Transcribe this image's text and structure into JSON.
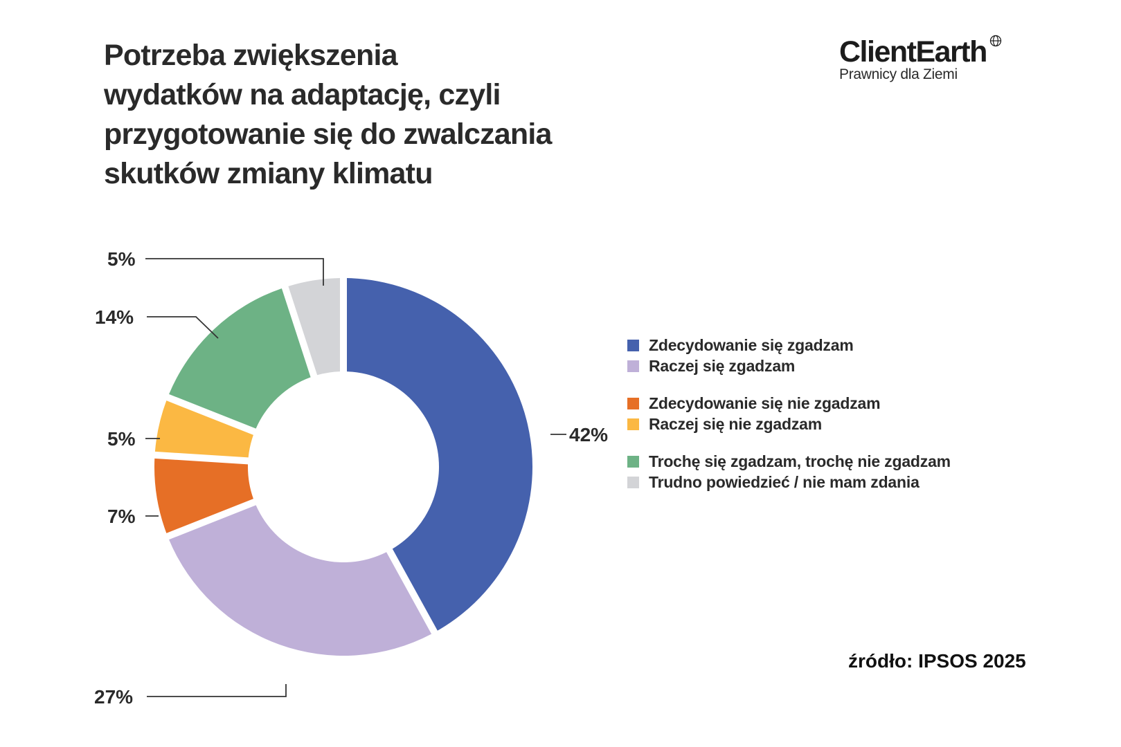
{
  "header": {
    "title": "Potrzeba zwiększenia wydatków na adaptację, czyli przygotowanie się do zwalczania skutków zmiany klimatu",
    "title_lines": [
      "Potrzeba zwiększenia",
      "wydatków na adaptację, czyli",
      "przygotowanie się do zwalczania",
      "skutków zmiany klimatu"
    ]
  },
  "logo": {
    "name": "ClientEarth",
    "tagline": "Prawnicy dla Ziemi",
    "icon": "globe-icon"
  },
  "source": "źródło: IPSOS 2025",
  "legend": {
    "groups": [
      [
        {
          "label": "Zdecydowanie się zgadzam",
          "color": "#4561AD"
        },
        {
          "label": "Raczej się zgadzam",
          "color": "#BFB0D8"
        }
      ],
      [
        {
          "label": "Zdecydowanie się nie zgadzam",
          "color": "#E66F26"
        },
        {
          "label": "Raczej się nie zgadzam",
          "color": "#FBB843"
        }
      ],
      [
        {
          "label": "Trochę się zgadzam, trochę nie zgadzam",
          "color": "#6DB285"
        },
        {
          "label": "Trudno powiedzieć / nie mam zdania",
          "color": "#D3D4D7"
        }
      ]
    ]
  },
  "chart_data": {
    "type": "pie",
    "variant": "donut",
    "title": "Potrzeba zwiększenia wydatków na adaptację, czyli przygotowanie się do zwalczania skutków zmiany klimatu",
    "categories": [
      "Zdecydowanie się zgadzam",
      "Raczej się zgadzam",
      "Zdecydowanie się nie zgadzam",
      "Raczej się nie zgadzam",
      "Trochę się zgadzam, trochę nie zgadzam",
      "Trudno powiedzieć / nie mam zdania"
    ],
    "values": [
      42,
      27,
      7,
      5,
      14,
      5
    ],
    "labels": [
      "42%",
      "27%",
      "7%",
      "5%",
      "14%",
      "5%"
    ],
    "colors": [
      "#4561AD",
      "#BFB0D8",
      "#E66F26",
      "#FBB843",
      "#6DB285",
      "#D3D4D7"
    ],
    "unit": "%",
    "legend_position": "right",
    "source": "źródło: IPSOS 2025"
  }
}
